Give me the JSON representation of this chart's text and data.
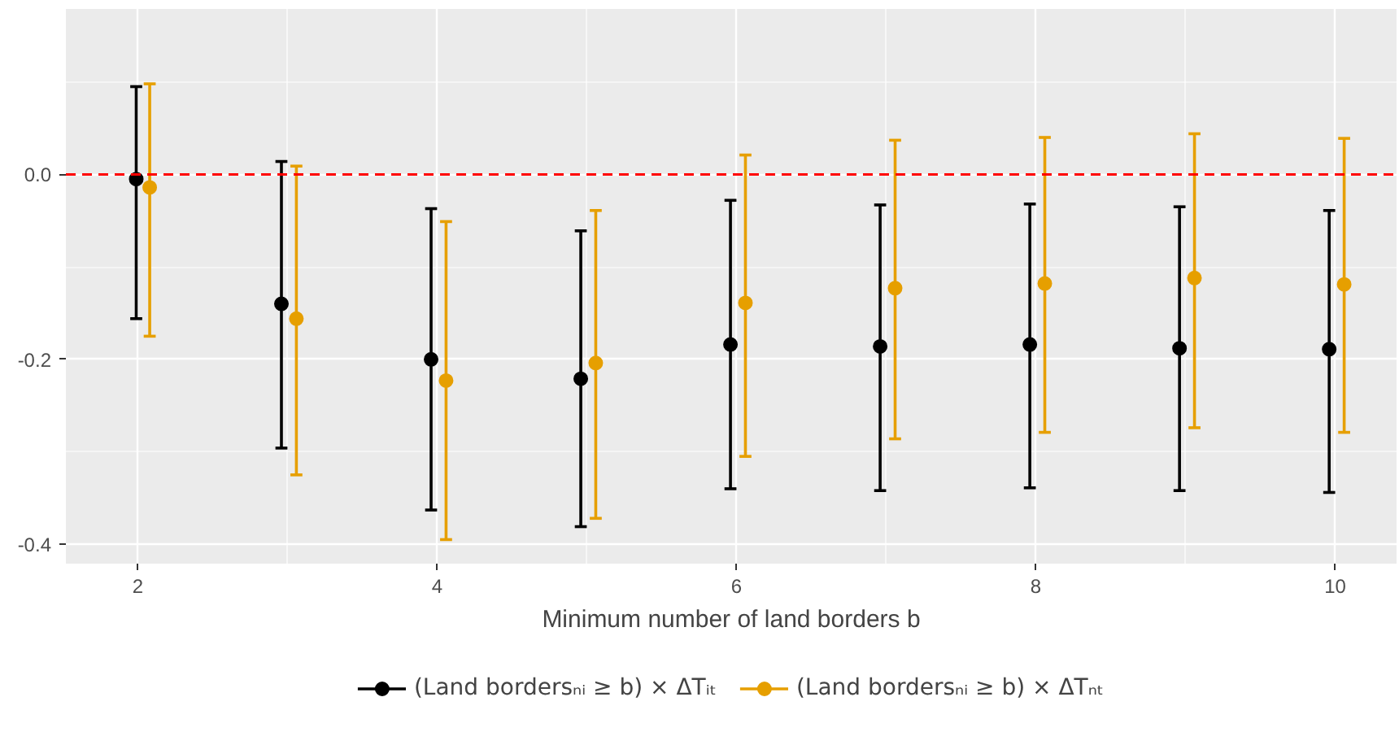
{
  "chart_data": {
    "type": "scatter",
    "xlabel": "Minimum number of land borders b",
    "xlim": [
      1.52,
      10.41
    ],
    "xticks": [
      2,
      4,
      6,
      8,
      10
    ],
    "ylim": [
      -0.421,
      0.179
    ],
    "yticks": [
      {
        "value": -0.4,
        "label": "-0.4"
      },
      {
        "value": -0.2,
        "label": "-0.2"
      },
      {
        "value": 0,
        "label": "0.0"
      }
    ],
    "grid": true,
    "legend": "bottom",
    "marker": "circle",
    "ref_lines": [
      {
        "axis": "y",
        "value": 0,
        "color": "#ff0000",
        "line_style": "dashed"
      }
    ],
    "series": [
      {
        "name": "(Land bordersₙᵢ ≥ b) × ΔTᵢₜ",
        "color": "#000000",
        "x": [
          1.99,
          2.96,
          3.96,
          4.96,
          5.96,
          6.96,
          7.96,
          8.96,
          9.96
        ],
        "values": [
          -0.005,
          -0.14,
          -0.2,
          -0.221,
          -0.184,
          -0.186,
          -0.184,
          -0.188,
          -0.189
        ],
        "errors": [
          [
            -0.156,
            0.095
          ],
          [
            -0.296,
            0.014
          ],
          [
            -0.363,
            -0.037
          ],
          [
            -0.381,
            -0.061
          ],
          [
            -0.34,
            -0.028
          ],
          [
            -0.342,
            -0.033
          ],
          [
            -0.339,
            -0.032
          ],
          [
            -0.342,
            -0.035
          ],
          [
            -0.344,
            -0.039
          ]
        ]
      },
      {
        "name": "(Land bordersₙᵢ ≥ b) × ΔTₙₜ",
        "color": "#e69f00",
        "x": [
          2.08,
          3.06,
          4.06,
          5.06,
          6.06,
          7.06,
          8.06,
          9.06,
          10.06
        ],
        "values": [
          -0.014,
          -0.156,
          -0.223,
          -0.204,
          -0.139,
          -0.123,
          -0.118,
          -0.112,
          -0.119
        ],
        "errors": [
          [
            -0.175,
            0.098
          ],
          [
            -0.325,
            0.009
          ],
          [
            -0.395,
            -0.051
          ],
          [
            -0.372,
            -0.039
          ],
          [
            -0.305,
            0.021
          ],
          [
            -0.286,
            0.037
          ],
          [
            -0.279,
            0.04
          ],
          [
            -0.274,
            0.044
          ],
          [
            -0.279,
            0.039
          ]
        ]
      }
    ]
  }
}
